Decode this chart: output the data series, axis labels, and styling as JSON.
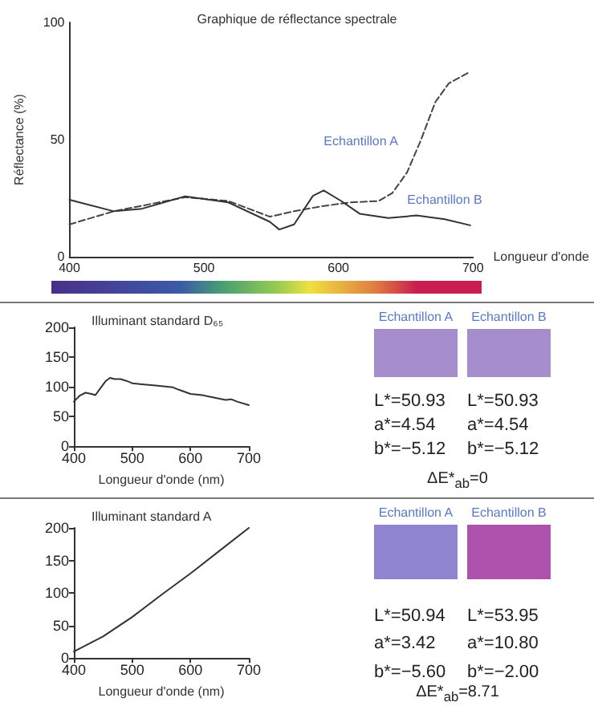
{
  "chart_data": [
    {
      "type": "line",
      "title": "Graphique de réflectance spectrale",
      "xlabel": "Longueur d'onde",
      "ylabel": "Réflectance (%)",
      "xlim": [
        400,
        700
      ],
      "xticks": [
        400,
        500,
        600,
        700
      ],
      "ylim": [
        0,
        100
      ],
      "yticks": [
        0,
        50,
        100
      ],
      "marker": "none",
      "series": [
        {
          "name": "Echantillon A",
          "color": "#444444",
          "line_style": "dashed",
          "x": [
            400,
            433,
            486,
            518,
            549,
            567,
            588,
            609,
            630,
            640,
            651,
            661,
            672,
            682,
            698
          ],
          "values": [
            13.8,
            19.4,
            25.4,
            23.8,
            17.1,
            19.4,
            21.6,
            23.2,
            23.8,
            27.2,
            36,
            49.4,
            66,
            74,
            79
          ]
        },
        {
          "name": "Echantillon B",
          "color": "#333333",
          "line_style": "solid",
          "x": [
            400,
            433,
            454,
            486,
            518,
            549,
            556,
            567,
            581,
            589,
            602,
            616,
            637,
            658,
            679,
            698
          ],
          "values": [
            24.3,
            19.4,
            20.5,
            25.8,
            23.2,
            14.9,
            11.6,
            13.8,
            26,
            28.3,
            23.8,
            18.3,
            16.5,
            17.6,
            16,
            13.4
          ]
        }
      ]
    },
    {
      "type": "line",
      "title": "Illuminant standard D₆₅",
      "xlabel": "Longueur d'onde (nm)",
      "xlim": [
        400,
        700
      ],
      "xticks": [
        400,
        500,
        600,
        700
      ],
      "ylim": [
        0,
        200
      ],
      "yticks": [
        0,
        50,
        100,
        150,
        200
      ],
      "marker": "none",
      "series": [
        {
          "color": "#333333",
          "x": [
            400,
            410,
            420,
            430,
            437,
            445,
            455,
            462,
            470,
            480,
            490,
            500,
            520,
            540,
            560,
            570,
            580,
            600,
            620,
            640,
            660,
            670,
            680,
            700
          ],
          "values": [
            75,
            85,
            90,
            88,
            86,
            97,
            110,
            115,
            113,
            113,
            110,
            106,
            104,
            102,
            100,
            99,
            95,
            88,
            86,
            82,
            78,
            79,
            75,
            69
          ]
        }
      ]
    },
    {
      "type": "other",
      "categories": [
        "Echantillon A",
        "Echantillon B"
      ],
      "colors": [
        "#a58ccb",
        "#a68dcc"
      ],
      "annotations": [
        "L*=50.93",
        "a*=4.54",
        "b*=−5.12",
        "L*=50.93",
        "a*=4.54",
        "b*=−5.12",
        "ΔE*$_{ab}$=0"
      ]
    },
    {
      "type": "line",
      "title": "Illuminant standard A",
      "xlabel": "Longueur d'onde (nm)",
      "xlim": [
        400,
        700
      ],
      "xticks": [
        400,
        500,
        600,
        700
      ],
      "ylim": [
        0,
        200
      ],
      "yticks": [
        0,
        50,
        100,
        150,
        200
      ],
      "marker": "none",
      "series": [
        {
          "color": "#333333",
          "x": [
            400,
            450,
            500,
            550,
            600,
            650,
            700
          ],
          "values": [
            10,
            33,
            63,
            97,
            130,
            165,
            200
          ]
        }
      ]
    },
    {
      "type": "other",
      "categories": [
        "Echantillon A",
        "Echantillon B"
      ],
      "colors": [
        "#8e84cf",
        "#ad52ad"
      ],
      "annotations": [
        "L*=50.94",
        "a*=3.42",
        "b*=−5.60",
        "L*=53.95",
        "a*=10.80",
        "b*=−2.00",
        "ΔE*$_{ab}$=8.71"
      ]
    }
  ]
}
